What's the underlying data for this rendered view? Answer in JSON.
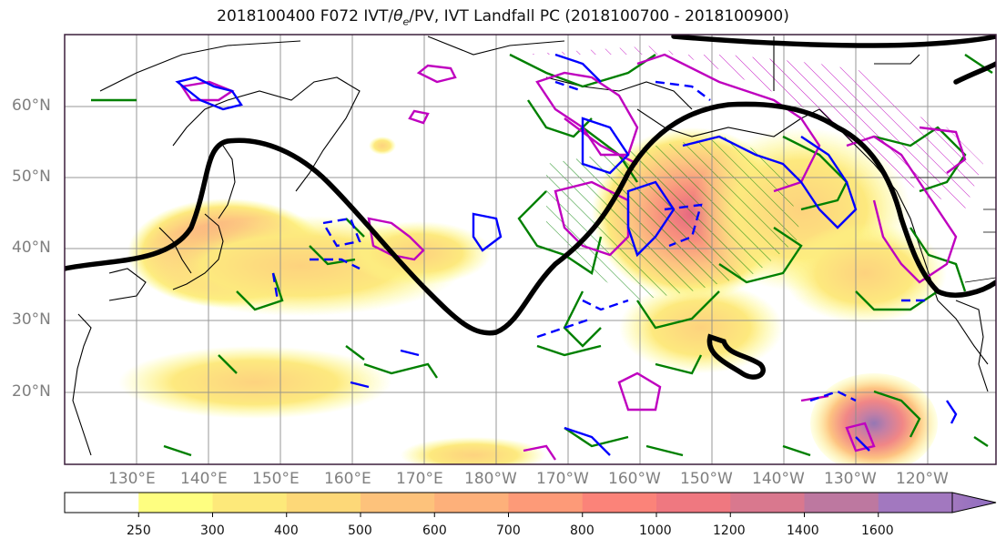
{
  "title_main": "2018100400 F072 IVT/",
  "title_theta": "θ",
  "title_sub": "e",
  "title_rest": "/PV, IVT Landfall PC (2018100700 - 2018100900)",
  "lat_labels": [
    "60°N",
    "50°N",
    "40°N",
    "30°N",
    "20°N"
  ],
  "lon_labels": [
    "130°E",
    "140°E",
    "150°E",
    "160°E",
    "170°E",
    "180°W",
    "170°W",
    "160°W",
    "150°W",
    "140°W",
    "130°W",
    "120°W"
  ],
  "colorbar": {
    "ticks": [
      "250",
      "300",
      "400",
      "500",
      "600",
      "700",
      "800",
      "1000",
      "1200",
      "1400",
      "1600"
    ],
    "colors": [
      "#ffffff",
      "#fefe80",
      "#fde97a",
      "#fdd878",
      "#fdc27b",
      "#fdb07a",
      "#fd9a78",
      "#fb8379",
      "#ef7880",
      "#d9788e",
      "#bd78a0",
      "#a278bf"
    ]
  },
  "legend_colors": {
    "ivt_contour_black": "#000000",
    "theta_e_magenta": "#bf00bf",
    "pv_green": "#008000",
    "pv_blue": "#0000ff"
  }
}
